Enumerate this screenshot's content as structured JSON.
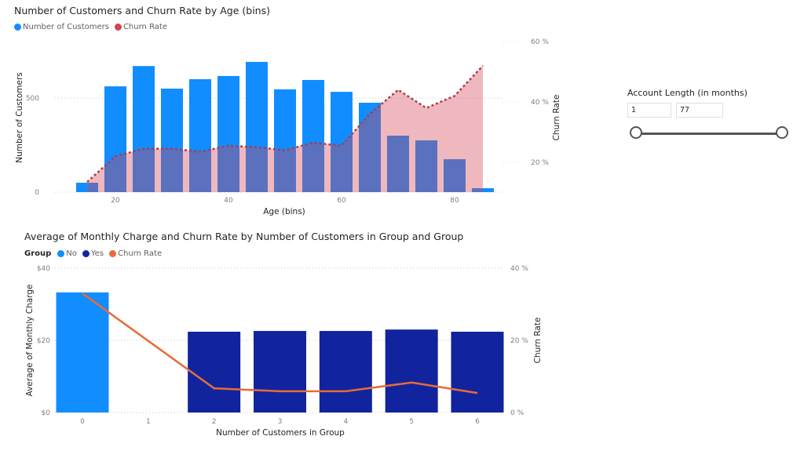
{
  "chart_data": [
    {
      "type": "bar",
      "title": "Number of Customers and Churn Rate by Age (bins)",
      "legend": [
        {
          "label": "Number of Customers",
          "color": "#118DFF"
        },
        {
          "label": "Churn Rate",
          "color": "#D64554"
        }
      ],
      "legend_position": "top-left",
      "xlabel": "Age (bins)",
      "ylabel": "Number of Customers",
      "y2label": "Churn Rate",
      "x": [
        15,
        20,
        25,
        30,
        35,
        40,
        45,
        50,
        55,
        60,
        65,
        70,
        75,
        80,
        85
      ],
      "x_ticks": [
        "20",
        "40",
        "60",
        "80"
      ],
      "x_tick_values": [
        20,
        40,
        60,
        80
      ],
      "xlim": [
        10,
        90
      ],
      "ylim": [
        0,
        800
      ],
      "y_ticks": [
        "0",
        "500"
      ],
      "y_tick_values": [
        0,
        500
      ],
      "y2lim": [
        0,
        60
      ],
      "y2_ticks": [
        "20 %",
        "40 %",
        "60 %"
      ],
      "y2_tick_values": [
        20,
        40,
        60
      ],
      "grid": true,
      "series": [
        {
          "name": "Number of Customers",
          "type": "bar",
          "axis": "left",
          "values": [
            50,
            562,
            670,
            550,
            600,
            617,
            692,
            546,
            596,
            533,
            475,
            300,
            275,
            175,
            21
          ]
        },
        {
          "name": "Churn Rate",
          "type": "area-dotted",
          "axis": "right",
          "unit": "%",
          "values": [
            13.5,
            22,
            24.5,
            24.5,
            23.5,
            25.5,
            25,
            24,
            26.5,
            25.5,
            36,
            44,
            38,
            42,
            52
          ]
        }
      ]
    },
    {
      "type": "bar",
      "title": "Average of Monthly Charge and Churn Rate by Number of Customers in Group and Group",
      "legend_title": "Group",
      "legend": [
        {
          "label": "No",
          "color": "#118DFF"
        },
        {
          "label": "Yes",
          "color": "#12239E"
        },
        {
          "label": "Churn Rate",
          "color": "#E66C37"
        }
      ],
      "legend_position": "top-left",
      "xlabel": "Number of Customers in Group",
      "ylabel": "Average of Monthly Charge",
      "y2label": "Churn Rate",
      "categories": [
        "0",
        "1",
        "2",
        "3",
        "4",
        "5",
        "6"
      ],
      "ylim": [
        0,
        40
      ],
      "y_ticks": [
        "$0",
        "$20",
        "$40"
      ],
      "y_tick_values": [
        0,
        20,
        40
      ],
      "y2lim": [
        0,
        40
      ],
      "y2_ticks": [
        "0 %",
        "20 %",
        "40 %"
      ],
      "y2_tick_values": [
        0,
        20,
        40
      ],
      "grid": true,
      "series": [
        {
          "name": "No",
          "type": "bar",
          "axis": "left",
          "values": [
            33.3,
            null,
            null,
            null,
            null,
            null,
            null
          ]
        },
        {
          "name": "Yes",
          "type": "bar",
          "axis": "left",
          "values": [
            null,
            null,
            22.4,
            22.6,
            22.6,
            23.0,
            22.4
          ]
        },
        {
          "name": "Churn Rate",
          "type": "line",
          "axis": "right",
          "unit": "%",
          "x_index": [
            0,
            2,
            3,
            4,
            5,
            6
          ],
          "values": [
            33,
            6.7,
            5.9,
            5.9,
            8.3,
            5.4
          ]
        }
      ]
    }
  ],
  "slicer": {
    "title": "Account Length (in months)",
    "min_value": "1",
    "max_value": "77",
    "range_fraction": [
      0,
      1
    ]
  }
}
